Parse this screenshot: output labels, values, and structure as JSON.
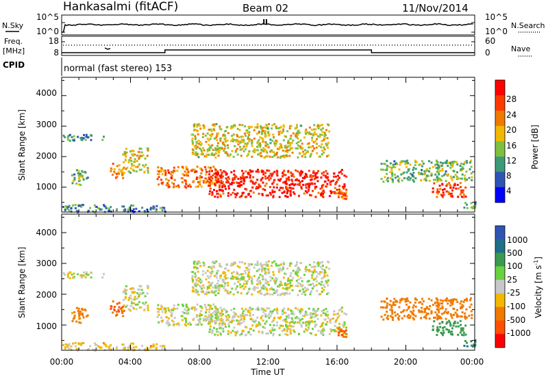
{
  "header": {
    "station": "Hankasalmi (fitACF)",
    "beam": "Beam 02",
    "date": "11/Nov/2014"
  },
  "noise_panel": {
    "left_label": "N.Sky",
    "right_label": "N.Search",
    "left_ticks": [
      "10^5",
      "10^0"
    ],
    "right_ticks": [
      "10^5",
      "10^0"
    ]
  },
  "freq_panel": {
    "left_label_line1": "Freq.",
    "left_label_line2": "[MHz]",
    "left_ticks": [
      "18",
      "8"
    ],
    "right_label": "Nave",
    "right_ticks": [
      "60",
      "0"
    ],
    "cpid_label": "CPID",
    "cpid_text": "normal (fast stereo) 153"
  },
  "x_axis": {
    "ticks": [
      "00:00",
      "04:00",
      "08:00",
      "12:00",
      "16:00",
      "20:00",
      "00:00"
    ],
    "label": "Time UT"
  },
  "power_panel": {
    "ylabel": "Slant Range [km]",
    "yticks": [
      "4000",
      "3000",
      "2000",
      "1000"
    ],
    "colorbar_label": "Power [dB]",
    "colorbar_ticks": [
      "28",
      "24",
      "20",
      "16",
      "12",
      "8",
      "4"
    ],
    "colors": [
      "#ff0000",
      "#ff3a00",
      "#f07a00",
      "#f2b800",
      "#7fc040",
      "#3c9a78",
      "#2f55b4",
      "#0000ff"
    ]
  },
  "velocity_panel": {
    "ylabel": "Slant Range [km]",
    "yticks": [
      "4000",
      "3000",
      "2000",
      "1000"
    ],
    "colorbar_label_main": "Velocity ",
    "colorbar_label_unit": "[m s",
    "colorbar_label_sup": "-1",
    "colorbar_label_end": "]",
    "colorbar_ticks": [
      "1000",
      "500",
      "100",
      "25",
      "-25",
      "-100",
      "-500",
      "-1000"
    ],
    "colors": [
      "#2f55b4",
      "#1f6e8a",
      "#3c9a50",
      "#6ad240",
      "#c8c8c8",
      "#f2b800",
      "#f07a00",
      "#ff5000",
      "#ff0000"
    ]
  },
  "chart_data": {
    "type": "heatmap",
    "title": "Hankasalmi (fitACF)",
    "xlabel": "Time UT",
    "ylabel": "Slant Range [km]",
    "x_range_hours": [
      0,
      24
    ],
    "y_range_km": [
      180,
      4600
    ],
    "power_colorbar": {
      "label": "Power [dB]",
      "range": [
        0,
        30
      ],
      "ticks": [
        4,
        8,
        12,
        16,
        20,
        24,
        28
      ]
    },
    "velocity_colorbar": {
      "label": "Velocity [m s-1]",
      "ticks": [
        1000,
        500,
        100,
        25,
        -25,
        -100,
        -500,
        -1000
      ]
    },
    "echo_regions": [
      {
        "t0": 0.0,
        "t1": 2.5,
        "r0": 2550,
        "r1": 2750,
        "power": 9,
        "velocity": 0
      },
      {
        "t0": 0.5,
        "t1": 1.5,
        "r0": 1100,
        "r1": 1600,
        "power": 12,
        "velocity": -150
      },
      {
        "t0": 2.8,
        "t1": 3.6,
        "r0": 1300,
        "r1": 1800,
        "power": 20,
        "velocity": -300
      },
      {
        "t0": 3.5,
        "t1": 5.0,
        "r0": 1500,
        "r1": 2300,
        "power": 16,
        "velocity": 0
      },
      {
        "t0": 5.5,
        "t1": 9.0,
        "r0": 1000,
        "r1": 1700,
        "power": 22,
        "velocity": 0
      },
      {
        "t0": 7.5,
        "t1": 15.5,
        "r0": 2000,
        "r1": 3100,
        "power": 16,
        "velocity": 0
      },
      {
        "t0": 8.5,
        "t1": 16.5,
        "r0": 700,
        "r1": 1600,
        "power": 27,
        "velocity": 0
      },
      {
        "t0": 16.0,
        "t1": 16.5,
        "r0": 500,
        "r1": 1000,
        "power": 22,
        "velocity": -300
      },
      {
        "t0": 18.5,
        "t1": 23.8,
        "r0": 1200,
        "r1": 1900,
        "power": 12,
        "velocity": -200
      },
      {
        "t0": 21.5,
        "t1": 23.5,
        "r0": 700,
        "r1": 1200,
        "power": 24,
        "velocity": 200
      },
      {
        "t0": 0.0,
        "t1": 6.0,
        "r0": 200,
        "r1": 450,
        "power": 8,
        "velocity": -50
      },
      {
        "t0": 23.3,
        "t1": 24.0,
        "r0": 300,
        "r1": 600,
        "power": 10,
        "velocity": 300
      }
    ],
    "frequency_mhz": {
      "x_hours": [
        0,
        6,
        6,
        18,
        18,
        24
      ],
      "y": [
        10,
        10,
        12,
        12,
        10,
        10
      ]
    },
    "nave": {
      "x_hours": [
        0,
        24
      ],
      "y": [
        40,
        40
      ]
    }
  }
}
